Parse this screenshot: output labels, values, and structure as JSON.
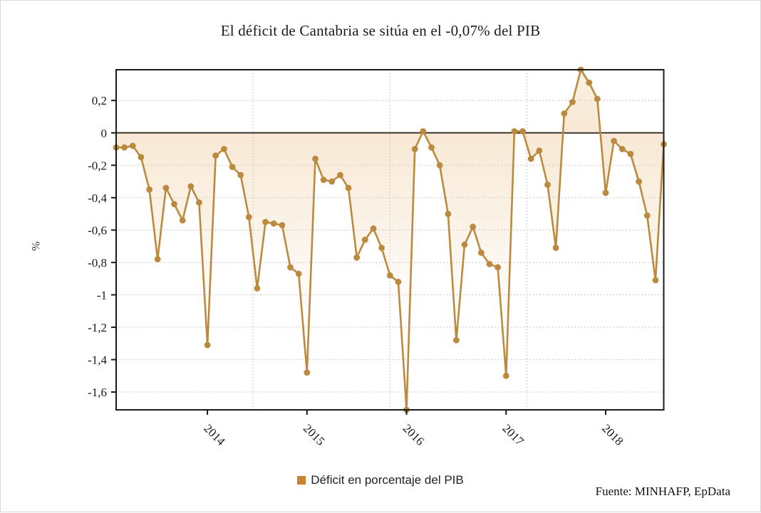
{
  "title": "El déficit de Cantabria se sitúa en el -0,07% del PIB",
  "legend": {
    "label": "Déficit en porcentaje del PIB",
    "swatch_color": "#c8832e"
  },
  "source": "Fuente: MINHAFP, EpData",
  "colors": {
    "series": "#bc8a3e",
    "area_tint": "234,188,130",
    "grid": "#c4c4c4",
    "axis": "#1a1a1a",
    "tick_text": "#1a1a1a"
  },
  "chart_data": {
    "type": "line",
    "title": "El déficit de Cantabria se sitúa en el -0,07% del PIB",
    "xlabel": "",
    "ylabel": "%",
    "ylim": [
      -1.71,
      0.39
    ],
    "grid": true,
    "legend_position": "bottom",
    "series": [
      {
        "name": "Déficit en porcentaje del PIB",
        "values": [
          -0.09,
          -0.09,
          -0.08,
          -0.15,
          -0.35,
          -0.78,
          -0.34,
          -0.44,
          -0.54,
          -0.33,
          -0.43,
          -1.31,
          -0.14,
          -0.1,
          -0.21,
          -0.26,
          -0.52,
          -0.96,
          -0.55,
          -0.56,
          -0.57,
          -0.83,
          -0.87,
          -1.48,
          -0.16,
          -0.29,
          -0.3,
          -0.26,
          -0.34,
          -0.77,
          -0.66,
          -0.59,
          -0.71,
          -0.88,
          -0.92,
          -1.71,
          -0.1,
          0.01,
          -0.09,
          -0.2,
          -0.5,
          -1.28,
          -0.69,
          -0.58,
          -0.74,
          -0.81,
          -0.83,
          -1.5,
          0.01,
          0.01,
          -0.16,
          -0.11,
          -0.32,
          -0.71,
          0.12,
          0.19,
          0.39,
          0.31,
          0.21,
          -0.37,
          -0.05,
          -0.1,
          -0.13,
          -0.3,
          -0.51,
          -0.91,
          -0.07
        ]
      }
    ],
    "x_ticks": [
      {
        "index": 11,
        "label": "2014"
      },
      {
        "index": 23,
        "label": "2015"
      },
      {
        "index": 35,
        "label": "2016"
      },
      {
        "index": 47,
        "label": "2017"
      },
      {
        "index": 59,
        "label": "2018"
      }
    ],
    "y_ticks": [
      {
        "value": 0.2,
        "label": "0,2"
      },
      {
        "value": 0,
        "label": "0"
      },
      {
        "value": -0.2,
        "label": "-0,2"
      },
      {
        "value": -0.4,
        "label": "-0,4"
      },
      {
        "value": -0.6,
        "label": "-0,6"
      },
      {
        "value": -0.8,
        "label": "-0,8"
      },
      {
        "value": -1,
        "label": "-1"
      },
      {
        "value": -1.2,
        "label": "-1,2"
      },
      {
        "value": -1.4,
        "label": "-1,4"
      },
      {
        "value": -1.6,
        "label": "-1,6"
      }
    ]
  }
}
